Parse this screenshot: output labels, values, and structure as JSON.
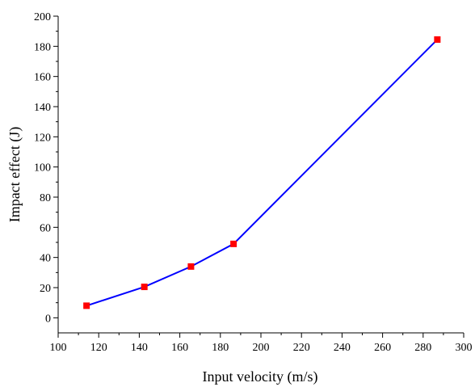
{
  "chart_data": {
    "type": "line",
    "xlabel": "Input velocity (m/s)",
    "ylabel": "Impact effect (J)",
    "xlim": [
      100,
      300
    ],
    "ylim": [
      -10,
      200
    ],
    "xticks": [
      100,
      120,
      140,
      160,
      180,
      200,
      220,
      240,
      260,
      280,
      300
    ],
    "yticks": [
      0,
      20,
      40,
      60,
      80,
      100,
      120,
      140,
      160,
      180,
      200
    ],
    "grid": false,
    "series": [
      {
        "x": [
          114,
          142.5,
          165.5,
          186.5,
          287
        ],
        "y": [
          8,
          20.5,
          34,
          49,
          184.5
        ],
        "line_color": "#0000ff",
        "marker": "square",
        "marker_color": "#ff0000"
      }
    ]
  }
}
